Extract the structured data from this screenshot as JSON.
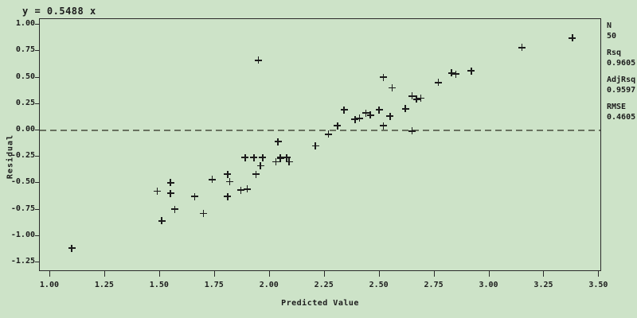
{
  "title": "y = 0.5488 x",
  "colors": {
    "background": "#cde3c8",
    "frame": "#2a2a2a",
    "text": "#1c1c1c",
    "marker": "#1c1c1c",
    "zero_line": "#68715f"
  },
  "stats": [
    {
      "label": "N",
      "value": "50"
    },
    {
      "label": "Rsq",
      "value": "0.9605"
    },
    {
      "label": "AdjRsq",
      "value": "0.9597"
    },
    {
      "label": "RMSE",
      "value": "0.4605"
    }
  ],
  "chart_data": {
    "type": "scatter",
    "marker_glyph": "plus",
    "title": "y = 0.5488 x",
    "xlabel": "Predicted Value",
    "ylabel": "Residual",
    "grid": false,
    "legend": "none",
    "reference_line_y": 0.0,
    "x_ticks": [
      "1.00",
      "1.25",
      "1.50",
      "1.75",
      "2.00",
      "2.25",
      "2.50",
      "2.75",
      "3.00",
      "3.25",
      "3.50"
    ],
    "y_ticks": [
      "1.00",
      "0.75",
      "0.50",
      "0.25",
      "0.00",
      "-0.25",
      "-0.50",
      "-0.75",
      "-1.00",
      "-1.25"
    ],
    "xlim": [
      0.953,
      3.513
    ],
    "ylim": [
      -1.34,
      1.054
    ],
    "points": [
      [
        1.1,
        -1.12
      ],
      [
        1.49,
        -0.58
      ],
      [
        1.51,
        -0.86
      ],
      [
        1.55,
        -0.5
      ],
      [
        1.55,
        -0.6
      ],
      [
        1.57,
        -0.75
      ],
      [
        1.66,
        -0.63
      ],
      [
        1.7,
        -0.79
      ],
      [
        1.74,
        -0.47
      ],
      [
        1.81,
        -0.42
      ],
      [
        1.81,
        -0.63
      ],
      [
        1.82,
        -0.49
      ],
      [
        1.87,
        -0.57
      ],
      [
        1.89,
        -0.26
      ],
      [
        1.9,
        -0.56
      ],
      [
        1.93,
        -0.26
      ],
      [
        1.94,
        -0.42
      ],
      [
        1.95,
        0.66
      ],
      [
        1.96,
        -0.34
      ],
      [
        1.97,
        -0.26
      ],
      [
        2.03,
        -0.3
      ],
      [
        2.04,
        -0.11
      ],
      [
        2.05,
        -0.26
      ],
      [
        2.05,
        -0.27
      ],
      [
        2.08,
        -0.26
      ],
      [
        2.09,
        -0.3
      ],
      [
        2.21,
        -0.15
      ],
      [
        2.27,
        -0.04
      ],
      [
        2.31,
        0.04
      ],
      [
        2.34,
        0.19
      ],
      [
        2.39,
        0.1
      ],
      [
        2.41,
        0.11
      ],
      [
        2.44,
        0.16
      ],
      [
        2.46,
        0.14
      ],
      [
        2.5,
        0.19
      ],
      [
        2.52,
        0.04
      ],
      [
        2.52,
        0.5
      ],
      [
        2.55,
        0.13
      ],
      [
        2.56,
        0.4
      ],
      [
        2.62,
        0.2
      ],
      [
        2.65,
        -0.01
      ],
      [
        2.65,
        0.32
      ],
      [
        2.67,
        0.29
      ],
      [
        2.69,
        0.3
      ],
      [
        2.77,
        0.45
      ],
      [
        2.83,
        0.54
      ],
      [
        2.85,
        0.53
      ],
      [
        2.92,
        0.56
      ],
      [
        3.15,
        0.78
      ],
      [
        3.38,
        0.87
      ]
    ]
  }
}
